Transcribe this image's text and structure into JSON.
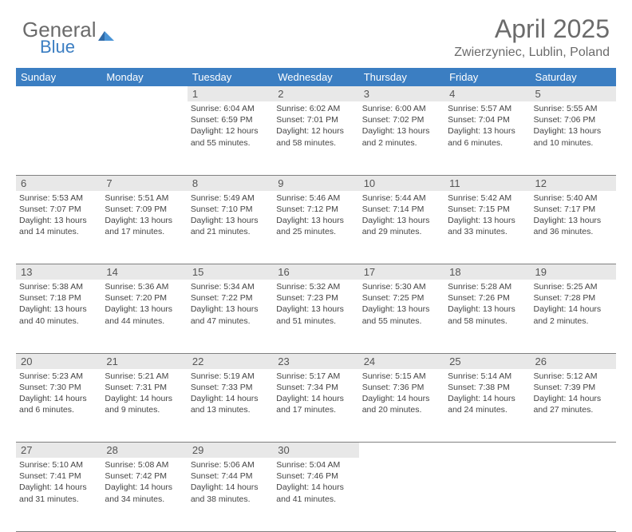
{
  "branding": {
    "name_part1": "General",
    "name_part2": "Blue",
    "text_color": "#6b6b6b",
    "accent_color": "#3b7ec2"
  },
  "header": {
    "title": "April 2025",
    "location": "Zwierzyniec, Lublin, Poland"
  },
  "colors": {
    "header_bg": "#3b7ec2",
    "header_text": "#ffffff",
    "daynum_bg": "#e8e8e8",
    "daynum_text": "#555555",
    "cell_text": "#444444",
    "grid_line": "#808080",
    "page_bg": "#ffffff"
  },
  "typography": {
    "title_fontsize": 32,
    "location_fontsize": 16,
    "weekday_fontsize": 13,
    "daynum_fontsize": 13,
    "cell_fontsize": 10.5
  },
  "weekdays": [
    "Sunday",
    "Monday",
    "Tuesday",
    "Wednesday",
    "Thursday",
    "Friday",
    "Saturday"
  ],
  "weeks": [
    {
      "nums": [
        "",
        "",
        "1",
        "2",
        "3",
        "4",
        "5"
      ],
      "cells": [
        null,
        null,
        {
          "sunrise": "Sunrise: 6:04 AM",
          "sunset": "Sunset: 6:59 PM",
          "daylight": "Daylight: 12 hours and 55 minutes."
        },
        {
          "sunrise": "Sunrise: 6:02 AM",
          "sunset": "Sunset: 7:01 PM",
          "daylight": "Daylight: 12 hours and 58 minutes."
        },
        {
          "sunrise": "Sunrise: 6:00 AM",
          "sunset": "Sunset: 7:02 PM",
          "daylight": "Daylight: 13 hours and 2 minutes."
        },
        {
          "sunrise": "Sunrise: 5:57 AM",
          "sunset": "Sunset: 7:04 PM",
          "daylight": "Daylight: 13 hours and 6 minutes."
        },
        {
          "sunrise": "Sunrise: 5:55 AM",
          "sunset": "Sunset: 7:06 PM",
          "daylight": "Daylight: 13 hours and 10 minutes."
        }
      ]
    },
    {
      "nums": [
        "6",
        "7",
        "8",
        "9",
        "10",
        "11",
        "12"
      ],
      "cells": [
        {
          "sunrise": "Sunrise: 5:53 AM",
          "sunset": "Sunset: 7:07 PM",
          "daylight": "Daylight: 13 hours and 14 minutes."
        },
        {
          "sunrise": "Sunrise: 5:51 AM",
          "sunset": "Sunset: 7:09 PM",
          "daylight": "Daylight: 13 hours and 17 minutes."
        },
        {
          "sunrise": "Sunrise: 5:49 AM",
          "sunset": "Sunset: 7:10 PM",
          "daylight": "Daylight: 13 hours and 21 minutes."
        },
        {
          "sunrise": "Sunrise: 5:46 AM",
          "sunset": "Sunset: 7:12 PM",
          "daylight": "Daylight: 13 hours and 25 minutes."
        },
        {
          "sunrise": "Sunrise: 5:44 AM",
          "sunset": "Sunset: 7:14 PM",
          "daylight": "Daylight: 13 hours and 29 minutes."
        },
        {
          "sunrise": "Sunrise: 5:42 AM",
          "sunset": "Sunset: 7:15 PM",
          "daylight": "Daylight: 13 hours and 33 minutes."
        },
        {
          "sunrise": "Sunrise: 5:40 AM",
          "sunset": "Sunset: 7:17 PM",
          "daylight": "Daylight: 13 hours and 36 minutes."
        }
      ]
    },
    {
      "nums": [
        "13",
        "14",
        "15",
        "16",
        "17",
        "18",
        "19"
      ],
      "cells": [
        {
          "sunrise": "Sunrise: 5:38 AM",
          "sunset": "Sunset: 7:18 PM",
          "daylight": "Daylight: 13 hours and 40 minutes."
        },
        {
          "sunrise": "Sunrise: 5:36 AM",
          "sunset": "Sunset: 7:20 PM",
          "daylight": "Daylight: 13 hours and 44 minutes."
        },
        {
          "sunrise": "Sunrise: 5:34 AM",
          "sunset": "Sunset: 7:22 PM",
          "daylight": "Daylight: 13 hours and 47 minutes."
        },
        {
          "sunrise": "Sunrise: 5:32 AM",
          "sunset": "Sunset: 7:23 PM",
          "daylight": "Daylight: 13 hours and 51 minutes."
        },
        {
          "sunrise": "Sunrise: 5:30 AM",
          "sunset": "Sunset: 7:25 PM",
          "daylight": "Daylight: 13 hours and 55 minutes."
        },
        {
          "sunrise": "Sunrise: 5:28 AM",
          "sunset": "Sunset: 7:26 PM",
          "daylight": "Daylight: 13 hours and 58 minutes."
        },
        {
          "sunrise": "Sunrise: 5:25 AM",
          "sunset": "Sunset: 7:28 PM",
          "daylight": "Daylight: 14 hours and 2 minutes."
        }
      ]
    },
    {
      "nums": [
        "20",
        "21",
        "22",
        "23",
        "24",
        "25",
        "26"
      ],
      "cells": [
        {
          "sunrise": "Sunrise: 5:23 AM",
          "sunset": "Sunset: 7:30 PM",
          "daylight": "Daylight: 14 hours and 6 minutes."
        },
        {
          "sunrise": "Sunrise: 5:21 AM",
          "sunset": "Sunset: 7:31 PM",
          "daylight": "Daylight: 14 hours and 9 minutes."
        },
        {
          "sunrise": "Sunrise: 5:19 AM",
          "sunset": "Sunset: 7:33 PM",
          "daylight": "Daylight: 14 hours and 13 minutes."
        },
        {
          "sunrise": "Sunrise: 5:17 AM",
          "sunset": "Sunset: 7:34 PM",
          "daylight": "Daylight: 14 hours and 17 minutes."
        },
        {
          "sunrise": "Sunrise: 5:15 AM",
          "sunset": "Sunset: 7:36 PM",
          "daylight": "Daylight: 14 hours and 20 minutes."
        },
        {
          "sunrise": "Sunrise: 5:14 AM",
          "sunset": "Sunset: 7:38 PM",
          "daylight": "Daylight: 14 hours and 24 minutes."
        },
        {
          "sunrise": "Sunrise: 5:12 AM",
          "sunset": "Sunset: 7:39 PM",
          "daylight": "Daylight: 14 hours and 27 minutes."
        }
      ]
    },
    {
      "nums": [
        "27",
        "28",
        "29",
        "30",
        "",
        "",
        ""
      ],
      "cells": [
        {
          "sunrise": "Sunrise: 5:10 AM",
          "sunset": "Sunset: 7:41 PM",
          "daylight": "Daylight: 14 hours and 31 minutes."
        },
        {
          "sunrise": "Sunrise: 5:08 AM",
          "sunset": "Sunset: 7:42 PM",
          "daylight": "Daylight: 14 hours and 34 minutes."
        },
        {
          "sunrise": "Sunrise: 5:06 AM",
          "sunset": "Sunset: 7:44 PM",
          "daylight": "Daylight: 14 hours and 38 minutes."
        },
        {
          "sunrise": "Sunrise: 5:04 AM",
          "sunset": "Sunset: 7:46 PM",
          "daylight": "Daylight: 14 hours and 41 minutes."
        },
        null,
        null,
        null
      ]
    }
  ]
}
